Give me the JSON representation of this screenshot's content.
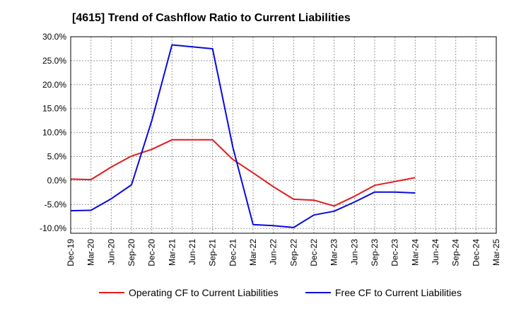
{
  "chart_data": {
    "type": "line",
    "title": "[4615]  Trend of Cashflow Ratio to Current Liabilities",
    "xlabel": "",
    "ylabel": "",
    "ylim": [
      -11,
      30
    ],
    "yticks": [
      30,
      25,
      20,
      15,
      10,
      5,
      0,
      -5,
      -10
    ],
    "ytick_labels": [
      "30.0%",
      "25.0%",
      "20.0%",
      "15.0%",
      "10.0%",
      "5.0%",
      "0.0%",
      "-5.0%",
      "-10.0%"
    ],
    "categories": [
      "Dec-19",
      "Mar-20",
      "Jun-20",
      "Sep-20",
      "Dec-20",
      "Mar-21",
      "Jun-21",
      "Sep-21",
      "Dec-21",
      "Mar-22",
      "Jun-22",
      "Sep-22",
      "Dec-22",
      "Mar-23",
      "Jun-23",
      "Sep-23",
      "Dec-23",
      "Mar-24",
      "Jun-24",
      "Sep-24",
      "Dec-24",
      "Mar-25"
    ],
    "grid": true,
    "legend_position": "bottom",
    "series": [
      {
        "name": "Operating CF to Current Liabilities",
        "color": "#e31a1c",
        "values": [
          0.3,
          0.2,
          2.8,
          5.1,
          6.5,
          8.5,
          8.5,
          8.5,
          4.4,
          1.6,
          -1.3,
          -3.9,
          -4.1,
          -5.3,
          -3.3,
          -1.0,
          -0.2,
          0.6,
          null,
          null,
          null,
          null
        ]
      },
      {
        "name": "Free CF to Current Liabilities",
        "color": "#0a0ae0",
        "values": [
          -6.3,
          -6.2,
          -3.8,
          -0.9,
          12.5,
          28.3,
          27.9,
          27.5,
          7.0,
          -9.2,
          -9.4,
          -9.8,
          -7.2,
          -6.4,
          -4.5,
          -2.4,
          -2.4,
          -2.6,
          null,
          null,
          null,
          null
        ]
      }
    ]
  }
}
